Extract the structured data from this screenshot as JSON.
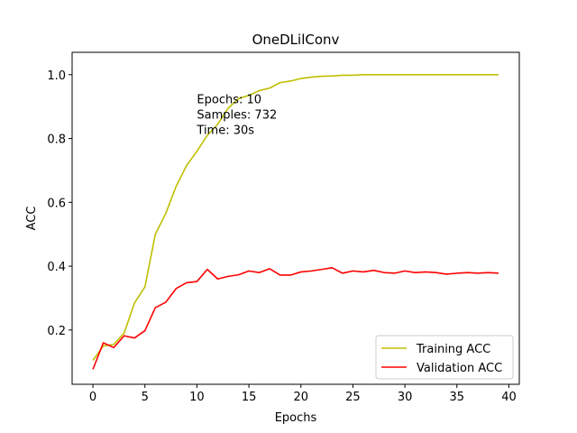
{
  "chart_data": {
    "type": "line",
    "title": "OneDLilConv",
    "xlabel": "Epochs",
    "ylabel": "ACC",
    "xlim": [
      -2,
      41
    ],
    "ylim": [
      0.03,
      1.07
    ],
    "xticks": [
      0,
      5,
      10,
      15,
      20,
      25,
      30,
      35,
      40
    ],
    "yticks": [
      0.2,
      0.4,
      0.6,
      0.8,
      1.0
    ],
    "xtick_labels": [
      "0",
      "5",
      "10",
      "15",
      "20",
      "25",
      "30",
      "35",
      "40"
    ],
    "ytick_labels": [
      "0.2",
      "0.4",
      "0.6",
      "0.8",
      "1.0"
    ],
    "grid": false,
    "legend_position": "lower-right",
    "annotation": [
      "Epochs: 10",
      "Samples: 732",
      "Time: 30s"
    ],
    "annotation_at": [
      10,
      0.91
    ],
    "x": [
      0,
      1,
      2,
      3,
      4,
      5,
      6,
      7,
      8,
      9,
      10,
      11,
      12,
      13,
      14,
      15,
      16,
      17,
      18,
      19,
      20,
      21,
      22,
      23,
      24,
      25,
      26,
      27,
      28,
      29,
      30,
      31,
      32,
      33,
      34,
      35,
      36,
      37,
      38,
      39
    ],
    "series": [
      {
        "name": "Training ACC",
        "color": "#bfbf00",
        "values": [
          0.105,
          0.15,
          0.155,
          0.19,
          0.285,
          0.335,
          0.5,
          0.565,
          0.65,
          0.715,
          0.76,
          0.81,
          0.845,
          0.895,
          0.925,
          0.935,
          0.95,
          0.958,
          0.975,
          0.98,
          0.988,
          0.992,
          0.995,
          0.996,
          0.998,
          0.998,
          1.0,
          1.0,
          1.0,
          1.0,
          1.0,
          1.0,
          1.0,
          1.0,
          1.0,
          1.0,
          1.0,
          1.0,
          1.0,
          1.0
        ]
      },
      {
        "name": "Validation ACC",
        "color": "#ff0000",
        "values": [
          0.077,
          0.16,
          0.145,
          0.182,
          0.175,
          0.198,
          0.27,
          0.287,
          0.33,
          0.348,
          0.352,
          0.39,
          0.36,
          0.368,
          0.373,
          0.385,
          0.38,
          0.392,
          0.372,
          0.372,
          0.382,
          0.385,
          0.39,
          0.395,
          0.378,
          0.385,
          0.382,
          0.387,
          0.38,
          0.378,
          0.385,
          0.38,
          0.382,
          0.38,
          0.375,
          0.378,
          0.38,
          0.378,
          0.38,
          0.378
        ]
      }
    ]
  }
}
